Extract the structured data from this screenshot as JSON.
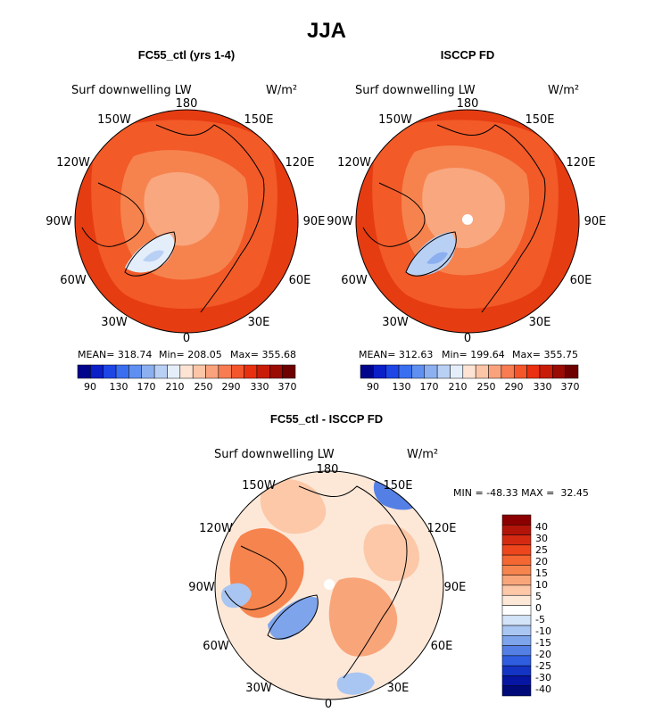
{
  "figure": {
    "title": "JJA"
  },
  "chart_data": [
    {
      "type": "heatmap",
      "projection": "north-polar-stereographic",
      "title": "FC55_ctl (yrs 1-4)",
      "subtitle": "Surf downwelling LW",
      "units": "W/m²",
      "lon_labels": [
        "180",
        "150E",
        "120E",
        "90E",
        "60E",
        "30E",
        "0",
        "30W",
        "60W",
        "90W",
        "120W",
        "150W"
      ],
      "stats": {
        "mean": "MEAN= 318.74",
        "min": "Min= 208.05",
        "max": "Max= 355.68"
      },
      "colorbar_labels": [
        "90",
        "130",
        "170",
        "210",
        "250",
        "290",
        "330",
        "370"
      ],
      "colorbar_colors": [
        "#00058c",
        "#0a1fc8",
        "#1e46e6",
        "#3a6ef0",
        "#5f8ff0",
        "#8caff0",
        "#b9d0f5",
        "#e4eefb",
        "#fde3d3",
        "#fbc5a7",
        "#f9a27d",
        "#f77c52",
        "#f4552b",
        "#e93010",
        "#c81c08",
        "#9a0b04",
        "#6e0000"
      ],
      "value_range": [
        208.05,
        355.68
      ],
      "mean_value": 318.74
    },
    {
      "type": "heatmap",
      "projection": "north-polar-stereographic",
      "title": "ISCCP FD",
      "subtitle": "Surf downwelling LW",
      "units": "W/m²",
      "lon_labels": [
        "180",
        "150E",
        "120E",
        "90E",
        "60E",
        "30E",
        "0",
        "30W",
        "60W",
        "90W",
        "120W",
        "150W"
      ],
      "stats": {
        "mean": "MEAN= 312.63",
        "min": "Min= 199.64",
        "max": "Max= 355.75"
      },
      "colorbar_labels": [
        "90",
        "130",
        "170",
        "210",
        "250",
        "290",
        "330",
        "370"
      ],
      "colorbar_colors": [
        "#00058c",
        "#0a1fc8",
        "#1e46e6",
        "#3a6ef0",
        "#5f8ff0",
        "#8caff0",
        "#b9d0f5",
        "#e4eefb",
        "#fde3d3",
        "#fbc5a7",
        "#f9a27d",
        "#f77c52",
        "#f4552b",
        "#e93010",
        "#c81c08",
        "#9a0b04",
        "#6e0000"
      ],
      "value_range": [
        199.64,
        355.75
      ],
      "mean_value": 312.63
    },
    {
      "type": "heatmap",
      "projection": "north-polar-stereographic",
      "title": "FC55_ctl - ISCCP FD",
      "subtitle": "Surf downwelling LW",
      "units": "W/m²",
      "lon_labels": [
        "180",
        "150E",
        "120E",
        "90E",
        "60E",
        "30E",
        "0",
        "30W",
        "60W",
        "90W",
        "120W",
        "150W"
      ],
      "stats": {
        "minmax": "MIN = -48.33 MAX =  32.45"
      },
      "colorbar_labels": [
        "40",
        "30",
        "25",
        "20",
        "15",
        "10",
        "5",
        "0",
        "-5",
        "-10",
        "-15",
        "-20",
        "-25",
        "-30",
        "-40"
      ],
      "colorbar_colors": [
        "#8a0000",
        "#b3140a",
        "#d42a12",
        "#ee461c",
        "#f46632",
        "#f6844e",
        "#f9a57a",
        "#fcc8a8",
        "#fde8d8",
        "#ffffff",
        "#d3e4f8",
        "#a9c6f2",
        "#7ea4ec",
        "#5480e6",
        "#2f5de0",
        "#1434c4",
        "#0616a2",
        "#000a78"
      ],
      "value_range": [
        -48.33,
        32.45
      ]
    }
  ]
}
